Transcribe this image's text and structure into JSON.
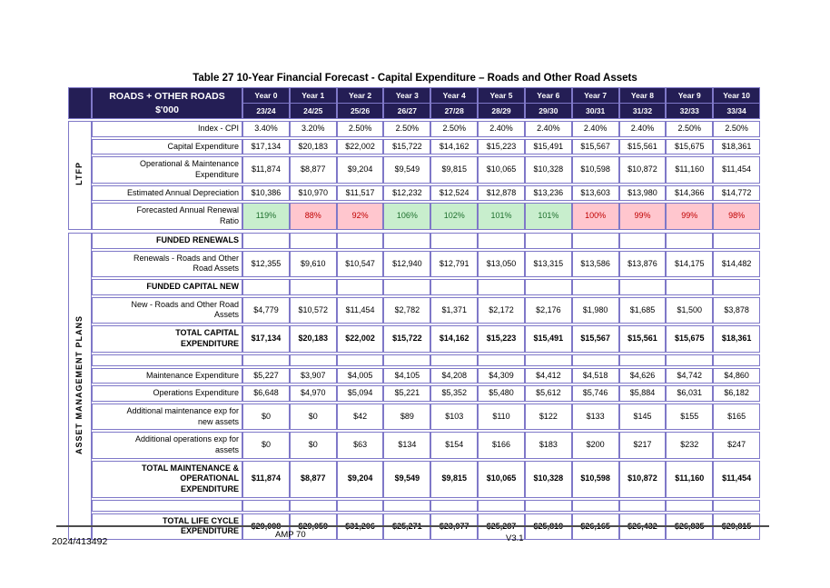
{
  "page": {
    "title": "Table 27 10-Year Financial Forecast - Capital Expenditure – Roads and Other Road Assets",
    "footer": {
      "doc_number": "2024/413492",
      "doc_ref": "AMP 70",
      "version": "V3.1"
    }
  },
  "colors": {
    "header_bg": "#241e55",
    "border": "#7f78c8",
    "ltfp_bg": "#fbf9cf",
    "amp_bg": "#dcdcef",
    "good_bg": "#c8eecd",
    "good_text": "#1e6f2d",
    "bad_bg": "#ffc6ce",
    "bad_text": "#c00000"
  },
  "table1": {
    "group_label": "LTFP",
    "corner_label": "ROADS + OTHER ROADS\n$'000",
    "year_headers": [
      "Year 0",
      "Year 1",
      "Year 2",
      "Year 3",
      "Year 4",
      "Year 5",
      "Year 6",
      "Year 7",
      "Year 8",
      "Year 9",
      "Year 10"
    ],
    "year_subheaders": [
      "23/24",
      "24/25",
      "25/26",
      "26/27",
      "27/28",
      "28/29",
      "29/30",
      "30/31",
      "31/32",
      "32/33",
      "33/34"
    ],
    "rows": [
      {
        "label": "Index - CPI",
        "values": [
          "3.40%",
          "3.20%",
          "2.50%",
          "2.50%",
          "2.50%",
          "2.40%",
          "2.40%",
          "2.40%",
          "2.40%",
          "2.50%",
          "2.50%"
        ]
      },
      {
        "label": "Capital Expenditure",
        "values": [
          "$17,134",
          "$20,183",
          "$22,002",
          "$15,722",
          "$14,162",
          "$15,223",
          "$15,491",
          "$15,567",
          "$15,561",
          "$15,675",
          "$18,361"
        ]
      },
      {
        "label": "Operational & Maintenance\nExpenditure",
        "values": [
          "$11,874",
          "$8,877",
          "$9,204",
          "$9,549",
          "$9,815",
          "$10,065",
          "$10,328",
          "$10,598",
          "$10,872",
          "$11,160",
          "$11,454"
        ]
      },
      {
        "label": "Estimated Annual Depreciation",
        "values": [
          "$10,386",
          "$10,970",
          "$11,517",
          "$12,232",
          "$12,524",
          "$12,878",
          "$13,236",
          "$13,603",
          "$13,980",
          "$14,366",
          "$14,772"
        ]
      },
      {
        "label": "Forecasted Annual Renewal\nRatio",
        "values": [
          "119%",
          "88%",
          "92%",
          "106%",
          "102%",
          "101%",
          "101%",
          "100%",
          "99%",
          "99%",
          "98%"
        ],
        "status": [
          "good",
          "bad",
          "bad",
          "good",
          "good",
          "good",
          "good",
          "bad",
          "bad",
          "bad",
          "bad"
        ]
      }
    ]
  },
  "table2": {
    "group_label": "ASSET MANAGEMENT PLANS",
    "rows": [
      {
        "label": "FUNDED RENEWALS",
        "bold": true,
        "values": [
          "",
          "",
          "",
          "",
          "",
          "",
          "",
          "",
          "",
          "",
          ""
        ]
      },
      {
        "label": "Renewals - Roads and Other\nRoad Assets",
        "values": [
          "$12,355",
          "$9,610",
          "$10,547",
          "$12,940",
          "$12,791",
          "$13,050",
          "$13,315",
          "$13,586",
          "$13,876",
          "$14,175",
          "$14,482"
        ]
      },
      {
        "label": "FUNDED CAPITAL NEW",
        "bold": true,
        "values": [
          "",
          "",
          "",
          "",
          "",
          "",
          "",
          "",
          "",
          "",
          ""
        ]
      },
      {
        "label": "New - Roads and Other Road\nAssets",
        "values": [
          "$4,779",
          "$10,572",
          "$11,454",
          "$2,782",
          "$1,371",
          "$2,172",
          "$2,176",
          "$1,980",
          "$1,685",
          "$1,500",
          "$3,878"
        ]
      },
      {
        "label": "TOTAL CAPITAL\nEXPENDITURE",
        "bold": true,
        "values": [
          "$17,134",
          "$20,183",
          "$22,002",
          "$15,722",
          "$14,162",
          "$15,223",
          "$15,491",
          "$15,567",
          "$15,561",
          "$15,675",
          "$18,361"
        ]
      },
      {
        "label": "",
        "spacer": true,
        "values": [
          "",
          "",
          "",
          "",
          "",
          "",
          "",
          "",
          "",
          "",
          ""
        ]
      },
      {
        "label": "Maintenance Expenditure",
        "values": [
          "$5,227",
          "$3,907",
          "$4,005",
          "$4,105",
          "$4,208",
          "$4,309",
          "$4,412",
          "$4,518",
          "$4,626",
          "$4,742",
          "$4,860"
        ]
      },
      {
        "label": "Operations Expenditure",
        "values": [
          "$6,648",
          "$4,970",
          "$5,094",
          "$5,221",
          "$5,352",
          "$5,480",
          "$5,612",
          "$5,746",
          "$5,884",
          "$6,031",
          "$6,182"
        ]
      },
      {
        "label": "Additional maintenance exp for\nnew assets",
        "values": [
          "$0",
          "$0",
          "$42",
          "$89",
          "$103",
          "$110",
          "$122",
          "$133",
          "$145",
          "$155",
          "$165"
        ]
      },
      {
        "label": "Additional operations exp for\nassets",
        "values": [
          "$0",
          "$0",
          "$63",
          "$134",
          "$154",
          "$166",
          "$183",
          "$200",
          "$217",
          "$232",
          "$247"
        ]
      },
      {
        "label": "TOTAL MAINTENANCE &\nOPERATIONAL\nEXPENDITURE",
        "bold": true,
        "values": [
          "$11,874",
          "$8,877",
          "$9,204",
          "$9,549",
          "$9,815",
          "$10,065",
          "$10,328",
          "$10,598",
          "$10,872",
          "$11,160",
          "$11,454"
        ]
      },
      {
        "label": "",
        "spacer": true,
        "values": [
          "",
          "",
          "",
          "",
          "",
          "",
          "",
          "",
          "",
          "",
          ""
        ]
      },
      {
        "label": "TOTAL LIFE CYCLE\nEXPENDITURE",
        "bold": true,
        "values": [
          "$29,008",
          "$29,059",
          "$31,206",
          "$25,271",
          "$23,977",
          "$25,287",
          "$25,819",
          "$26,165",
          "$26,432",
          "$26,835",
          "$29,815"
        ]
      }
    ]
  }
}
